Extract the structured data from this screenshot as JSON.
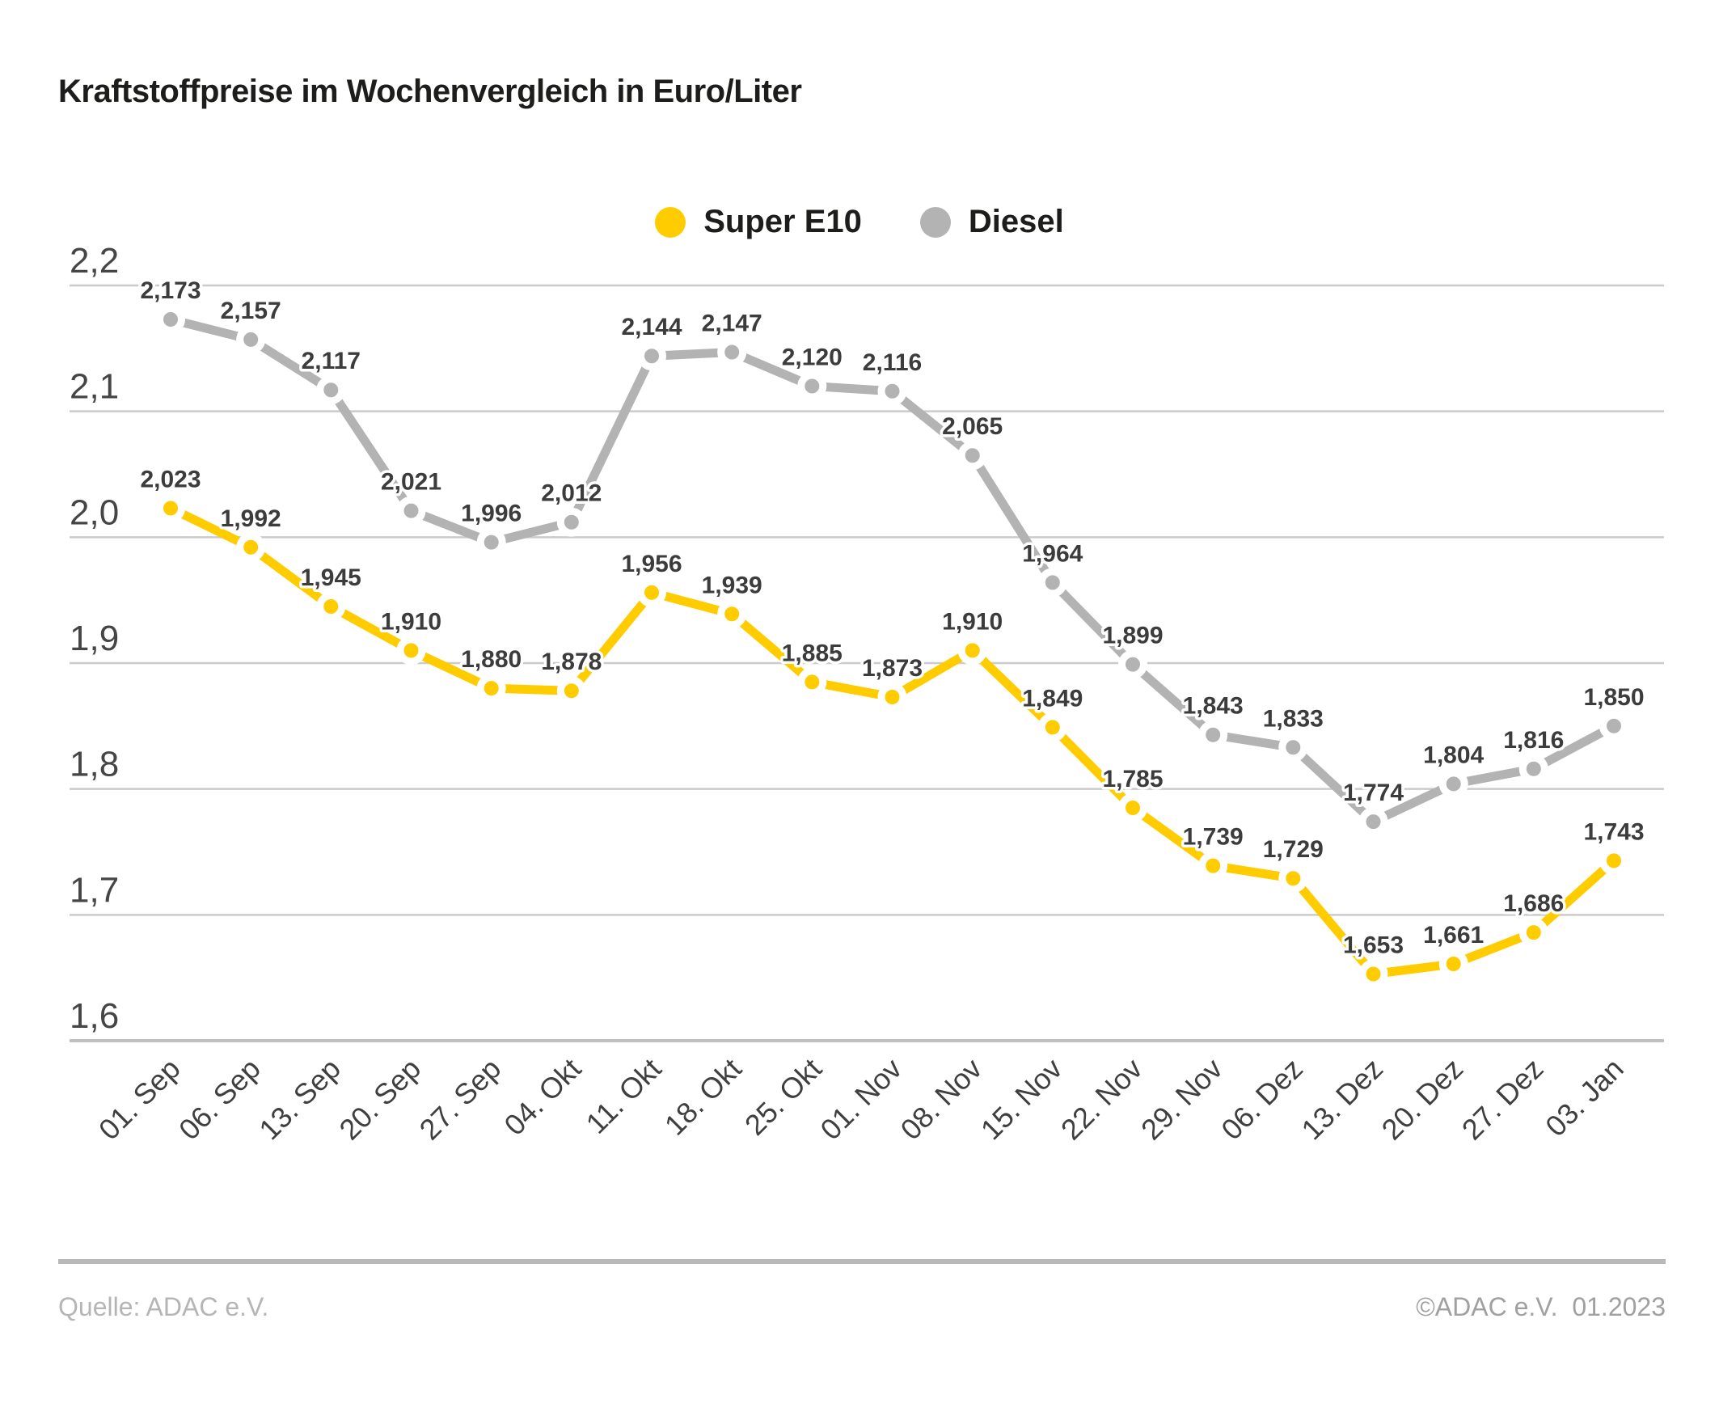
{
  "header": {
    "title": "Kraftstoffpreise im Wochenvergleich in Euro/Liter"
  },
  "legend": {
    "items": [
      {
        "label": "Super E10",
        "color": "#FFCC00"
      },
      {
        "label": "Diesel",
        "color": "#B3B3B3"
      }
    ]
  },
  "footer": {
    "source": "Quelle: ADAC e.V.",
    "copyright": "©ADAC e.V.  01.2023"
  },
  "colors": {
    "super_e10": "#FFCC00",
    "diesel": "#B3B3B3",
    "grid": "#CBCBCB",
    "data_label": "#3C3C3C",
    "title_text": "#1D1D1B",
    "footer_text": "#B5B5B5"
  },
  "chart_data": {
    "type": "line",
    "title": "Kraftstoffpreise im Wochenvergleich in Euro/Liter",
    "xlabel": "",
    "ylabel": "Euro/Liter",
    "grid": true,
    "legend_position": "top-center",
    "decimal_separator": ",",
    "ylim": [
      1.6,
      2.2
    ],
    "y_ticks": [
      {
        "label": "2,2",
        "value": 2.2
      },
      {
        "label": "2,1",
        "value": 2.1
      },
      {
        "label": "2,0",
        "value": 2.0
      },
      {
        "label": "1,9",
        "value": 1.9
      },
      {
        "label": "1,8",
        "value": 1.8
      },
      {
        "label": "1,7",
        "value": 1.7
      },
      {
        "label": "1,6",
        "value": 1.6
      }
    ],
    "categories": [
      "01. Sep",
      "06. Sep",
      "13. Sep",
      "20. Sep",
      "27. Sep",
      "04. Okt",
      "11. Okt",
      "18. Okt",
      "25. Okt",
      "01. Nov",
      "08. Nov",
      "15. Nov",
      "22. Nov",
      "29. Nov",
      "06. Dez",
      "13. Dez",
      "20. Dez",
      "27. Dez",
      "03. Jan"
    ],
    "series": [
      {
        "name": "Super E10",
        "color": "#FFCC00",
        "values": [
          2.023,
          1.992,
          1.945,
          1.91,
          1.88,
          1.878,
          1.956,
          1.939,
          1.885,
          1.873,
          1.91,
          1.849,
          1.785,
          1.739,
          1.729,
          1.653,
          1.661,
          1.686,
          1.743
        ],
        "labels": [
          "2,023",
          "1,992",
          "1,945",
          "1,910",
          "1,880",
          "1,878",
          "1,956",
          "1,939",
          "1,885",
          "1,873",
          "1,910",
          "1,849",
          "1,785",
          "1,739",
          "1,729",
          "1,653",
          "1,661",
          "1,686",
          "1,743"
        ]
      },
      {
        "name": "Diesel",
        "color": "#B3B3B3",
        "values": [
          2.173,
          2.157,
          2.117,
          2.021,
          1.996,
          2.012,
          2.144,
          2.147,
          2.12,
          2.116,
          2.065,
          1.964,
          1.899,
          1.843,
          1.833,
          1.774,
          1.804,
          1.816,
          1.85
        ],
        "labels": [
          "2,173",
          "2,157",
          "2,117",
          "2,021",
          "1,996",
          "2,012",
          "2,144",
          "2,147",
          "2,120",
          "2,116",
          "2,065",
          "1,964",
          "1,899",
          "1,843",
          "1,833",
          "1,774",
          "1,804",
          "1,816",
          "1,850"
        ]
      }
    ]
  }
}
